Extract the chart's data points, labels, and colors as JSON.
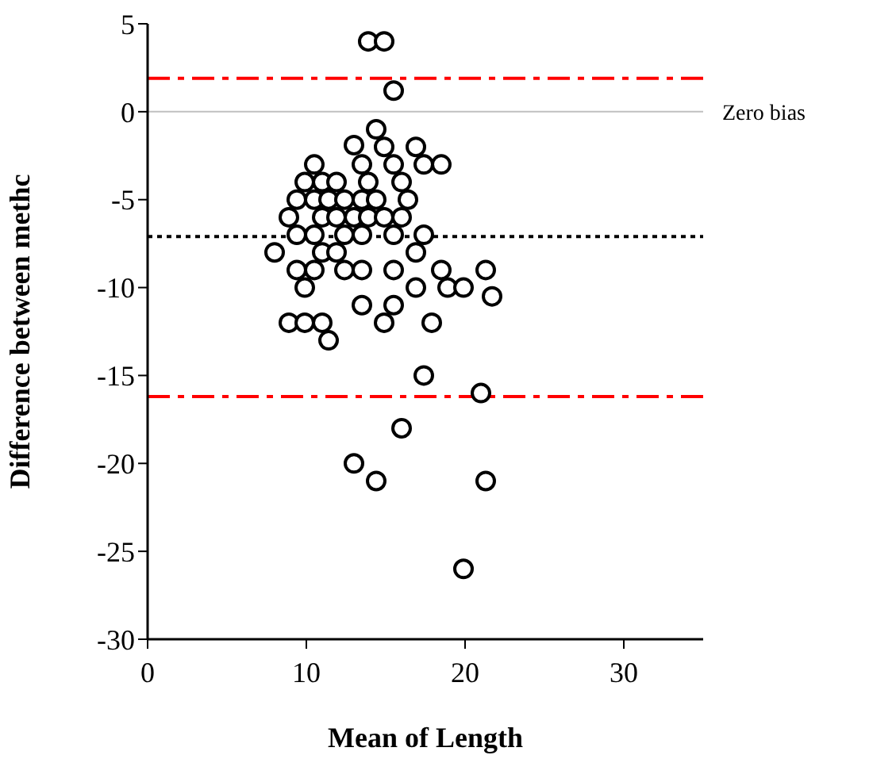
{
  "chart_data": {
    "type": "scatter",
    "xlabel": "Mean of Length",
    "ylabel": "Difference between methc",
    "xlim": [
      0,
      35
    ],
    "xticks": [
      0,
      10,
      20,
      30
    ],
    "ylim": [
      -30,
      5
    ],
    "yticks": [
      -30,
      -25,
      -20,
      -15,
      -10,
      -5,
      0,
      5
    ],
    "grid": false,
    "legend": false,
    "marker": "circle",
    "series": [
      {
        "color": "#000000",
        "x": [
          13.9,
          14.9,
          15.5,
          14.4,
          13.0,
          14.9,
          16.9,
          10.5,
          13.5,
          15.5,
          17.4,
          18.5,
          9.9,
          11.0,
          11.9,
          13.9,
          16.0,
          9.4,
          10.5,
          11.4,
          12.4,
          13.5,
          14.4,
          16.4,
          8.9,
          11.0,
          11.9,
          13.0,
          13.9,
          14.9,
          16.0,
          9.4,
          10.5,
          12.4,
          13.5,
          15.5,
          17.4,
          8.0,
          11.0,
          11.9,
          16.9,
          9.4,
          10.5,
          12.4,
          13.5,
          15.5,
          18.5,
          21.3,
          9.9,
          16.9,
          18.9,
          19.9,
          21.7,
          13.5,
          15.5,
          8.9,
          9.9,
          11.0,
          14.9,
          17.9,
          11.4,
          17.4,
          21.0,
          16.0,
          13.0,
          14.4,
          21.3,
          19.9
        ],
        "values": [
          4,
          4,
          1.2,
          -1,
          -1.9,
          -2,
          -2,
          -3,
          -3,
          -3,
          -3,
          -3,
          -4,
          -4,
          -4,
          -4,
          -4,
          -5,
          -5,
          -5,
          -5,
          -5,
          -5,
          -5,
          -6,
          -6,
          -6,
          -6,
          -6,
          -6,
          -6,
          -7,
          -7,
          -7,
          -7,
          -7,
          -7,
          -8,
          -8,
          -8,
          -8,
          -9,
          -9,
          -9,
          -9,
          -9,
          -9,
          -9,
          -10,
          -10,
          -10,
          -10,
          -10.5,
          -11,
          -11,
          -12,
          -12,
          -12,
          -12,
          -12,
          -13,
          -15,
          -16,
          -18,
          -20,
          -21,
          -21,
          -26
        ]
      }
    ],
    "ref_lines": [
      {
        "axis": "y",
        "value": 1.9,
        "color": "#ff0000",
        "line_style": "dashed"
      },
      {
        "axis": "y",
        "value": 0,
        "label": "Zero bias",
        "color": "#c0c0c0",
        "line_style": "solid"
      },
      {
        "axis": "y",
        "value": -7.1,
        "color": "#000000",
        "line_style": "dotted"
      },
      {
        "axis": "y",
        "value": -16.2,
        "color": "#ff0000",
        "line_style": "dashed"
      }
    ]
  }
}
